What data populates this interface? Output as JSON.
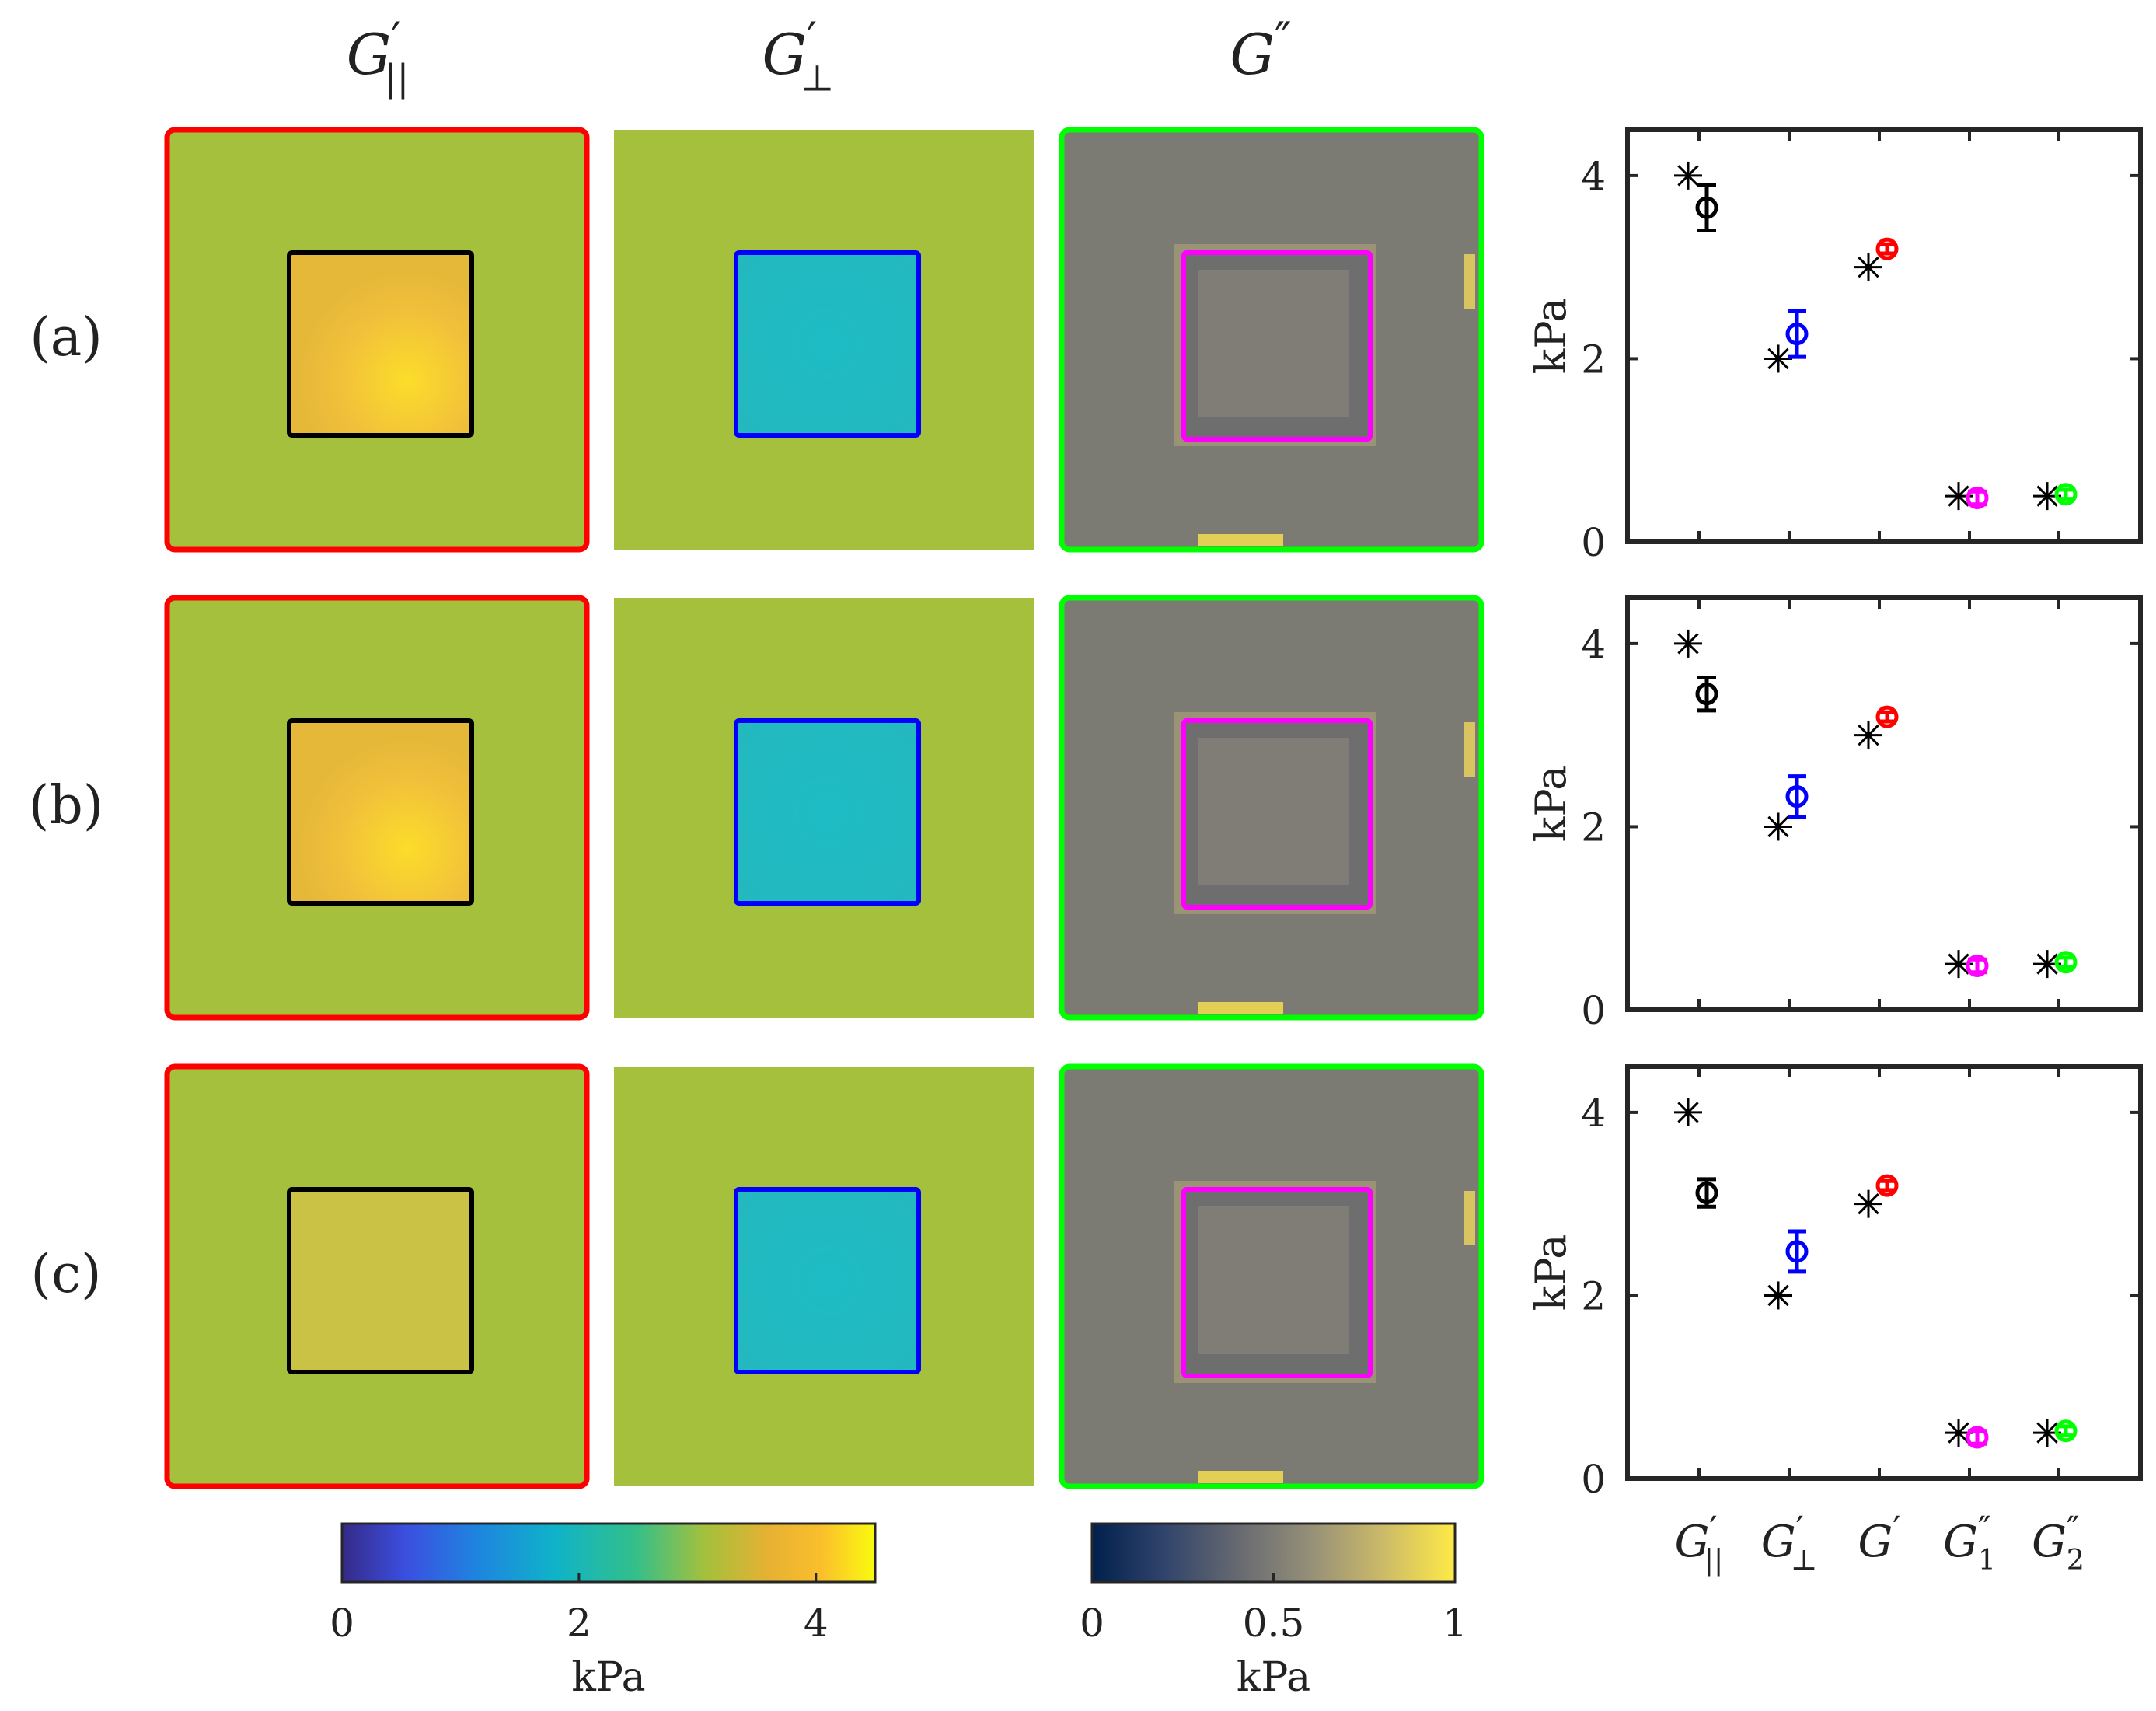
{
  "column_headers": [
    {
      "base": "G",
      "prime": "′",
      "sub": "||"
    },
    {
      "base": "G",
      "prime": "′",
      "sub": "⊥"
    },
    {
      "base": "G",
      "prime": "″",
      "sub": ""
    }
  ],
  "row_labels": [
    "(a)",
    "(b)",
    "(c)"
  ],
  "colors": {
    "G_par_frame": "#ff0000",
    "G_perp_frame": "none",
    "G_loss_frame": "#00ff00",
    "G_par_inclusion": "#000000",
    "G_perp_inclusion": "#0000ff",
    "G_loss_inclusion": "#ff00ff",
    "background_par": "#a4c03c",
    "background_perp": "#a4c03c",
    "background_loss": "#7c7b73",
    "series_Gpar": "#000000",
    "series_Gperp": "#0000ff",
    "series_G": "#ff0000",
    "series_G1pp": "#ff00ff",
    "series_G2pp": "#00ff00",
    "true_marker": "#000000"
  },
  "maps": [
    {
      "row": "(a)",
      "G_par_inclusion_kpa": 3.6,
      "G_perp_inclusion_kpa": 2.3,
      "G_loss_background_kpa": 0.45
    },
    {
      "row": "(b)",
      "G_par_inclusion_kpa": 3.4,
      "G_perp_inclusion_kpa": 2.3,
      "G_loss_background_kpa": 0.45
    },
    {
      "row": "(c)",
      "G_par_inclusion_kpa": 3.1,
      "G_perp_inclusion_kpa": 2.5,
      "G_loss_background_kpa": 0.45
    }
  ],
  "colorbars": [
    {
      "name": "elastic",
      "scheme": "parula",
      "min": 0,
      "max": 4.5,
      "ticks": [
        "0",
        "2",
        "4"
      ],
      "tick_values": [
        0,
        2,
        4
      ],
      "label": "kPa"
    },
    {
      "name": "loss",
      "scheme": "cividis",
      "min": 0,
      "max": 1,
      "ticks": [
        "0",
        "0.5",
        "1"
      ],
      "tick_values": [
        0,
        0.5,
        1
      ],
      "label": "kPa"
    }
  ],
  "chart_data": [
    {
      "type": "scatter",
      "panel": "(a)",
      "ylabel": "kPa",
      "ylim": [
        0,
        4.5
      ],
      "yticks": [
        0,
        2,
        4
      ],
      "categories": [
        "G′||",
        "G′⊥",
        "G′",
        "G″1",
        "G″2"
      ],
      "true_values": [
        4.0,
        2.0,
        3.0,
        0.5,
        0.5
      ],
      "estimates": [
        3.65,
        2.27,
        3.2,
        0.48,
        0.52
      ],
      "errors": [
        0.25,
        0.25,
        0.05,
        0.07,
        0.05
      ]
    },
    {
      "type": "scatter",
      "panel": "(b)",
      "ylabel": "kPa",
      "ylim": [
        0,
        4.5
      ],
      "yticks": [
        0,
        2,
        4
      ],
      "categories": [
        "G′||",
        "G′⊥",
        "G′",
        "G″1",
        "G″2"
      ],
      "true_values": [
        4.0,
        2.0,
        3.0,
        0.5,
        0.5
      ],
      "estimates": [
        3.45,
        2.33,
        3.2,
        0.48,
        0.52
      ],
      "errors": [
        0.18,
        0.22,
        0.05,
        0.07,
        0.05
      ]
    },
    {
      "type": "scatter",
      "panel": "(c)",
      "ylabel": "kPa",
      "ylim": [
        0,
        4.5
      ],
      "yticks": [
        0,
        2,
        4
      ],
      "categories": [
        "G′||",
        "G′⊥",
        "G′",
        "G″1",
        "G″2"
      ],
      "true_values": [
        4.0,
        2.0,
        3.0,
        0.5,
        0.5
      ],
      "estimates": [
        3.12,
        2.48,
        3.2,
        0.45,
        0.52
      ],
      "errors": [
        0.15,
        0.22,
        0.05,
        0.07,
        0.05
      ]
    }
  ],
  "x_tick_labels": [
    {
      "base": "G",
      "prime": "′",
      "sub": "||"
    },
    {
      "base": "G",
      "prime": "′",
      "sub": "⊥"
    },
    {
      "base": "G",
      "prime": "′",
      "sub": ""
    },
    {
      "base": "G",
      "prime": "″",
      "sub": "1"
    },
    {
      "base": "G",
      "prime": "″",
      "sub": "2"
    }
  ]
}
